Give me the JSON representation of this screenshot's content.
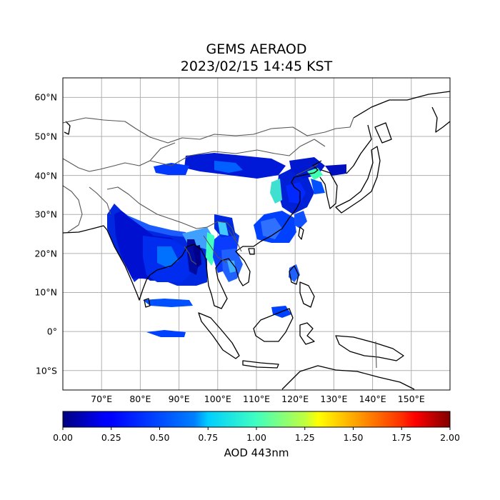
{
  "title": {
    "line1": "GEMS AERAOD",
    "line2": "2023/02/15 14:45 KST"
  },
  "map": {
    "lon_range": [
      60,
      160
    ],
    "lat_range": [
      -15,
      65
    ],
    "lon_ticks": [
      "70°E",
      "80°E",
      "90°E",
      "100°E",
      "110°E",
      "120°E",
      "130°E",
      "140°E",
      "150°E"
    ],
    "lat_ticks": [
      "60°N",
      "50°N",
      "40°N",
      "30°N",
      "20°N",
      "10°N",
      "0°",
      "10°S"
    ],
    "gridlines": true
  },
  "colorbar": {
    "label": "AOD 443nm",
    "ticks": [
      "0.00",
      "0.25",
      "0.50",
      "0.75",
      "1.00",
      "1.25",
      "1.50",
      "1.75",
      "2.00"
    ],
    "range": [
      0,
      2
    ],
    "colormap": "jet"
  },
  "colors": {
    "low": "#00008f",
    "mid": "#00ff80",
    "high": "#800000",
    "grid": "#b0b0b0",
    "coast": "#000000",
    "border": "#555555"
  }
}
